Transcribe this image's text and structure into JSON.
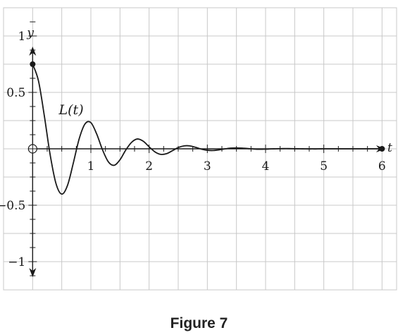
{
  "chart_data": {
    "type": "line",
    "title": "",
    "xlabel": "t",
    "ylabel": "y",
    "xlim": [
      -0.5,
      6.25
    ],
    "ylim": [
      -1.25,
      1.25
    ],
    "x_ticks": [
      1,
      2,
      3,
      4,
      5,
      6
    ],
    "x_tick_labels": [
      "1",
      "2",
      "3",
      "4",
      "5",
      "6"
    ],
    "y_ticks": [
      1,
      0.5,
      -0.5,
      -1
    ],
    "y_tick_labels": [
      "1",
      "0.5",
      "−0.5",
      "−1"
    ],
    "grid": true,
    "grid_step": 0.5,
    "grid_step_y": 0.25,
    "series": [
      {
        "name": "L(t)",
        "x": [
          0,
          0.1,
          0.2,
          0.3,
          0.4,
          0.5,
          0.6,
          0.7,
          0.8,
          0.9,
          1.0,
          1.1,
          1.2,
          1.3,
          1.4,
          1.5,
          1.6,
          1.7,
          1.8,
          1.9,
          2.0,
          2.1,
          2.2,
          2.3,
          2.4,
          2.5,
          2.6,
          2.7,
          2.8,
          2.9,
          3.0,
          3.1,
          3.2,
          3.3,
          3.4,
          3.5,
          3.6,
          3.7,
          3.8,
          3.9,
          4.0,
          4.1,
          4.2,
          4.3,
          4.4,
          4.5,
          4.6,
          4.7,
          4.8,
          4.9,
          5.0,
          5.1,
          5.2,
          5.3,
          5.4,
          5.5,
          5.6,
          5.7,
          5.8,
          5.9,
          6.0
        ],
        "y": [
          0.75,
          0.603,
          0.295,
          -0.05,
          -0.306,
          -0.401,
          -0.322,
          -0.123,
          0.09,
          0.221,
          0.232,
          0.131,
          -0.009,
          -0.115,
          -0.146,
          -0.097,
          -0.01,
          0.058,
          0.087,
          0.067,
          0.018,
          -0.027,
          -0.049,
          -0.043,
          -0.017,
          0.011,
          0.026,
          0.026,
          0.013,
          -0.003,
          -0.013,
          -0.015,
          -0.009,
          -0.001,
          0.006,
          0.008,
          0.006,
          0.002,
          -0.002,
          -0.004,
          -0.003,
          -0.001,
          0.001,
          0.002,
          0.002,
          0.001,
          0.0,
          -0.001,
          -0.001,
          -0.001,
          0.0,
          0.0,
          0.0,
          0.0,
          0.0,
          0.0,
          0.0,
          0.0,
          0.0,
          0.0,
          0.0
        ]
      }
    ],
    "endpoints": [
      {
        "x": 0,
        "y": 0.75,
        "style": "filled"
      },
      {
        "x": 6,
        "y": 0,
        "style": "filled"
      },
      {
        "x": 0,
        "y": 0,
        "style": "open"
      }
    ],
    "curve_label": {
      "text": "L(t)",
      "x": 0.45,
      "y": 0.35
    }
  },
  "caption": "Figure 7"
}
